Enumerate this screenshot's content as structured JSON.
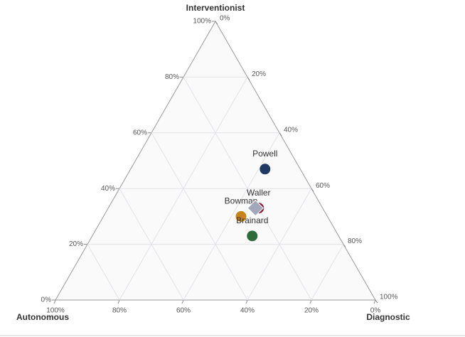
{
  "chart_data": {
    "type": "ternary",
    "axes": [
      {
        "title": "Interventionist",
        "ticks": [
          {
            "value": 0,
            "label": "0%"
          },
          {
            "value": 20,
            "label": "20%"
          },
          {
            "value": 40,
            "label": "40%"
          },
          {
            "value": 60,
            "label": "60%"
          },
          {
            "value": 80,
            "label": "80%"
          },
          {
            "value": 100,
            "label": "100%"
          }
        ]
      },
      {
        "title": "Autonomous",
        "ticks": [
          {
            "value": 0,
            "label": "0%"
          },
          {
            "value": 20,
            "label": "20%"
          },
          {
            "value": 40,
            "label": "40%"
          },
          {
            "value": 60,
            "label": "60%"
          },
          {
            "value": 80,
            "label": "80%"
          },
          {
            "value": 100,
            "label": "100%"
          }
        ]
      },
      {
        "title": "Diagnostic",
        "ticks": [
          {
            "value": 0,
            "label": "0%"
          },
          {
            "value": 20,
            "label": "20%"
          },
          {
            "value": 40,
            "label": "40%"
          },
          {
            "value": 60,
            "label": "60%"
          },
          {
            "value": 80,
            "label": "80%"
          },
          {
            "value": 100,
            "label": "100%"
          }
        ]
      }
    ],
    "grid": true,
    "series": [
      {
        "name": "Powell",
        "color": "#1f3864",
        "marker": "circle",
        "values": [
          47,
          11,
          42
        ]
      },
      {
        "name": "Waller",
        "color": "#8b1a3a",
        "marker": "circle",
        "values": [
          33,
          20,
          47
        ]
      },
      {
        "name": "Bowman",
        "color": "#c8841c",
        "marker": "circle",
        "values": [
          30,
          27,
          43
        ]
      },
      {
        "name": "Brainard",
        "color": "#2e6b3a",
        "marker": "circle",
        "values": [
          23,
          27,
          50
        ]
      },
      {
        "color": "#a3a7ba",
        "marker": "diamond",
        "values": [
          33,
          21,
          46
        ]
      }
    ]
  }
}
